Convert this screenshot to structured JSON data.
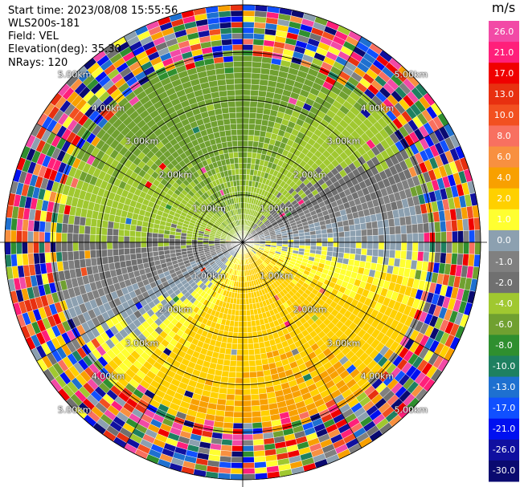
{
  "info": {
    "start_time": "Start time: 2023/08/08 15:55:56",
    "station": "WLS200s-181",
    "field": "Field: VEL",
    "elevation": "Elevation(deg): 35.30",
    "nrays": "NRays: 120"
  },
  "colorbar": {
    "unit": "m/s",
    "ticks": [
      "26.0",
      "21.0",
      "17.0",
      "13.0",
      "10.0",
      "8.0",
      "6.0",
      "4.0",
      "2.0",
      "1.0",
      "0.0",
      "-1.0",
      "-2.0",
      "-4.0",
      "-6.0",
      "-8.0",
      "-10.0",
      "-13.0",
      "-17.0",
      "-21.0",
      "-26.0",
      "-30.0"
    ],
    "colors": [
      "#f24aa6",
      "#ff1f7a",
      "#f00000",
      "#e83010",
      "#f25020",
      "#f87060",
      "#f89040",
      "#f8a000",
      "#ffd000",
      "#ffff30",
      "#8ca0b0",
      "#808080",
      "#707070",
      "#a0c830",
      "#70a030",
      "#2f8f2f",
      "#1e8060",
      "#1e70d0",
      "#1050ff",
      "#0010f0",
      "#1010a0",
      "#0a0a70"
    ]
  },
  "range_rings": {
    "labels": [
      "1.00km",
      "2.00km",
      "3.00km",
      "4.00km",
      "5.00km"
    ]
  },
  "chart_data": {
    "type": "ppi",
    "field": "VEL",
    "units": "m/s",
    "nrays": 120,
    "elevation_deg": 35.3,
    "range_rings_km": [
      1,
      2,
      3,
      4,
      5
    ],
    "color_scale": [
      -30,
      -26,
      -21,
      -17,
      -13,
      -10,
      -8,
      -6,
      -4,
      -2,
      -1,
      0,
      1,
      2,
      4,
      6,
      8,
      10,
      13,
      17,
      21,
      26
    ]
  }
}
